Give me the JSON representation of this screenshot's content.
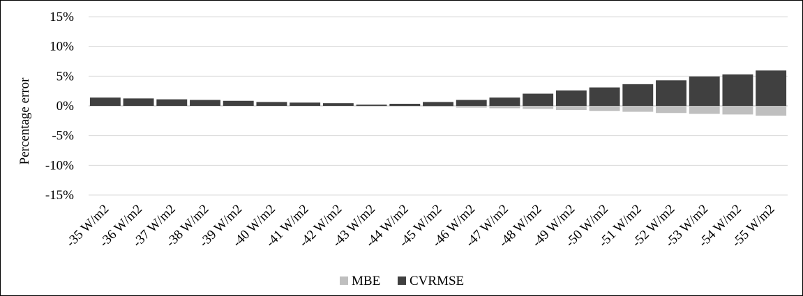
{
  "chart_data": {
    "type": "bar",
    "title": "",
    "xlabel": "",
    "ylabel": "Percentage error",
    "ylim": [
      -15,
      15
    ],
    "yticks": [
      15,
      10,
      5,
      0,
      -5,
      -10,
      -15
    ],
    "ytick_labels": [
      "15%",
      "10%",
      "5%",
      "0%",
      "-5%",
      "-10%",
      "-15%"
    ],
    "grid": true,
    "legend_position": "bottom",
    "categories": [
      "-35 W/m2",
      "-36 W/m2",
      "-37 W/m2",
      "-38 W/m2",
      "-39 W/m2",
      "-40 W/m2",
      "-41 W/m2",
      "-42 W/m2",
      "-43 W/m2",
      "-44 W/m2",
      "-45 W/m2",
      "-46 W/m2",
      "-47 W/m2",
      "-48 W/m2",
      "-49 W/m2",
      "-50 W/m2",
      "-51 W/m2",
      "-52 W/m2",
      "-53 W/m2",
      "-54 W/m2",
      "-55 W/m2"
    ],
    "series": [
      {
        "name": "MBE",
        "color": "#bfbfbf",
        "values": [
          0.4,
          0.35,
          0.3,
          0.25,
          0.2,
          0.15,
          0.1,
          0.05,
          0.0,
          -0.05,
          -0.15,
          -0.3,
          -0.4,
          -0.5,
          -0.7,
          -0.85,
          -1.0,
          -1.2,
          -1.35,
          -1.45,
          -1.65
        ]
      },
      {
        "name": "CVRMSE",
        "color": "#404040",
        "values": [
          1.4,
          1.25,
          1.1,
          1.0,
          0.85,
          0.65,
          0.55,
          0.45,
          0.2,
          0.35,
          0.65,
          1.0,
          1.4,
          2.05,
          2.6,
          3.1,
          3.65,
          4.3,
          4.95,
          5.3,
          5.95
        ]
      }
    ]
  }
}
